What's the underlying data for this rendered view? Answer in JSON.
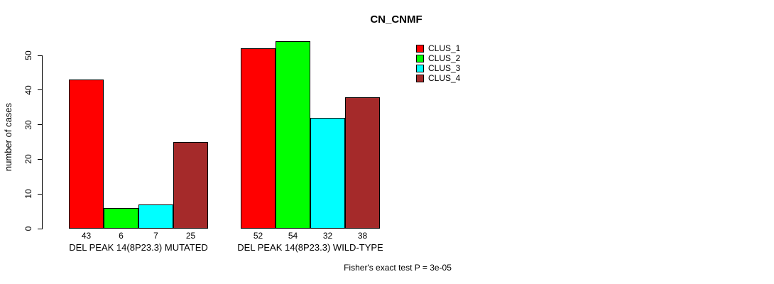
{
  "chart_data": {
    "type": "bar",
    "title": "CN_CNMF",
    "ylabel": "number of cases",
    "xlabel": "",
    "ylim": [
      0,
      55
    ],
    "yticks": [
      0,
      10,
      20,
      30,
      40,
      50
    ],
    "grid": false,
    "legend_position": "top-right",
    "bar_value_labels": true,
    "categories": [
      "DEL PEAK 14(8P23.3) MUTATED",
      "DEL PEAK 14(8P23.3) WILD-TYPE"
    ],
    "groups": [
      {
        "label": "DEL PEAK 14(8P23.3) MUTATED",
        "values": [
          43,
          6,
          7,
          25
        ]
      },
      {
        "label": "DEL PEAK 14(8P23.3) WILD-TYPE",
        "values": [
          52,
          54,
          32,
          38
        ]
      }
    ],
    "series": [
      {
        "name": "CLUS_1",
        "color": "#FF0000"
      },
      {
        "name": "CLUS_2",
        "color": "#00FF00"
      },
      {
        "name": "CLUS_3",
        "color": "#00FFFF"
      },
      {
        "name": "CLUS_4",
        "color": "#A52A2A"
      }
    ],
    "annotation": "Fisher's exact test P = 3e-05"
  },
  "colors": {
    "background": "#FFFFFF",
    "axis": "#000000",
    "text": "#000000"
  }
}
